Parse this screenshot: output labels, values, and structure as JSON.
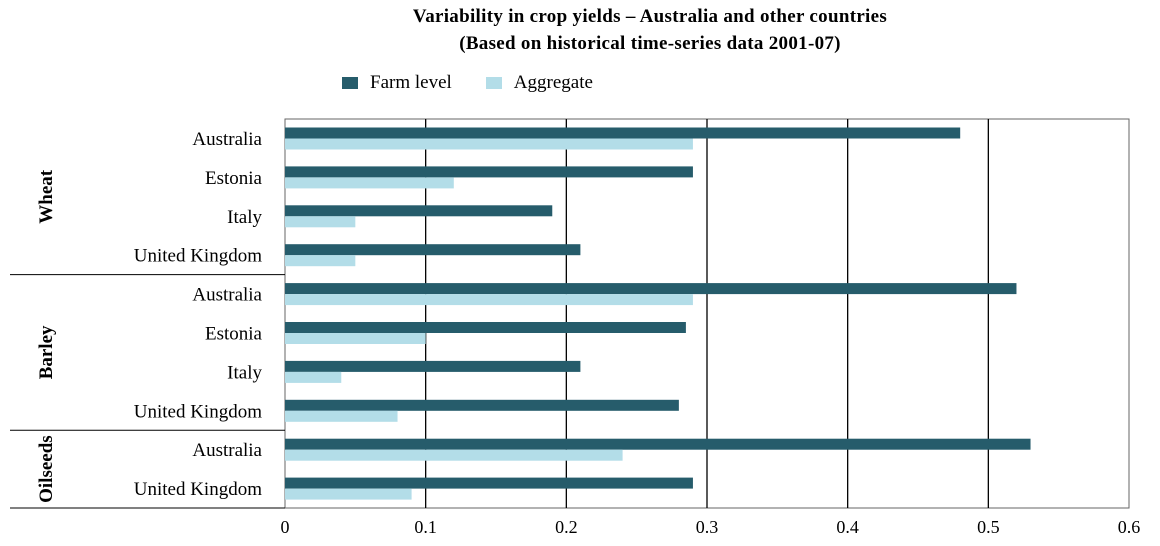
{
  "chart_data": {
    "type": "bar",
    "orientation": "horizontal",
    "title": "Variability in crop yields – Australia and other countries",
    "subtitle": "(Based on historical time-series data 2001-07)",
    "groups": [
      {
        "name": "Wheat",
        "categories": [
          "Australia",
          "Estonia",
          "Italy",
          "United Kingdom"
        ]
      },
      {
        "name": "Barley",
        "categories": [
          "Australia",
          "Estonia",
          "Italy",
          "United Kingdom"
        ]
      },
      {
        "name": "Oilseeds",
        "categories": [
          "Australia",
          "United Kingdom"
        ]
      }
    ],
    "series": [
      {
        "name": "Farm level",
        "color": "#265c6b",
        "values": [
          0.48,
          0.29,
          0.19,
          0.21,
          0.52,
          0.285,
          0.21,
          0.28,
          0.53,
          0.29
        ]
      },
      {
        "name": "Aggregate",
        "color": "#b3dde8",
        "values": [
          0.29,
          0.12,
          0.05,
          0.05,
          0.29,
          0.1,
          0.04,
          0.08,
          0.24,
          0.09
        ]
      }
    ],
    "xlim": [
      0,
      0.6
    ],
    "xticks": [
      "0",
      "0.1",
      "0.2",
      "0.3",
      "0.4",
      "0.5",
      "0.6"
    ],
    "grid": "vertical",
    "legend": "top"
  }
}
